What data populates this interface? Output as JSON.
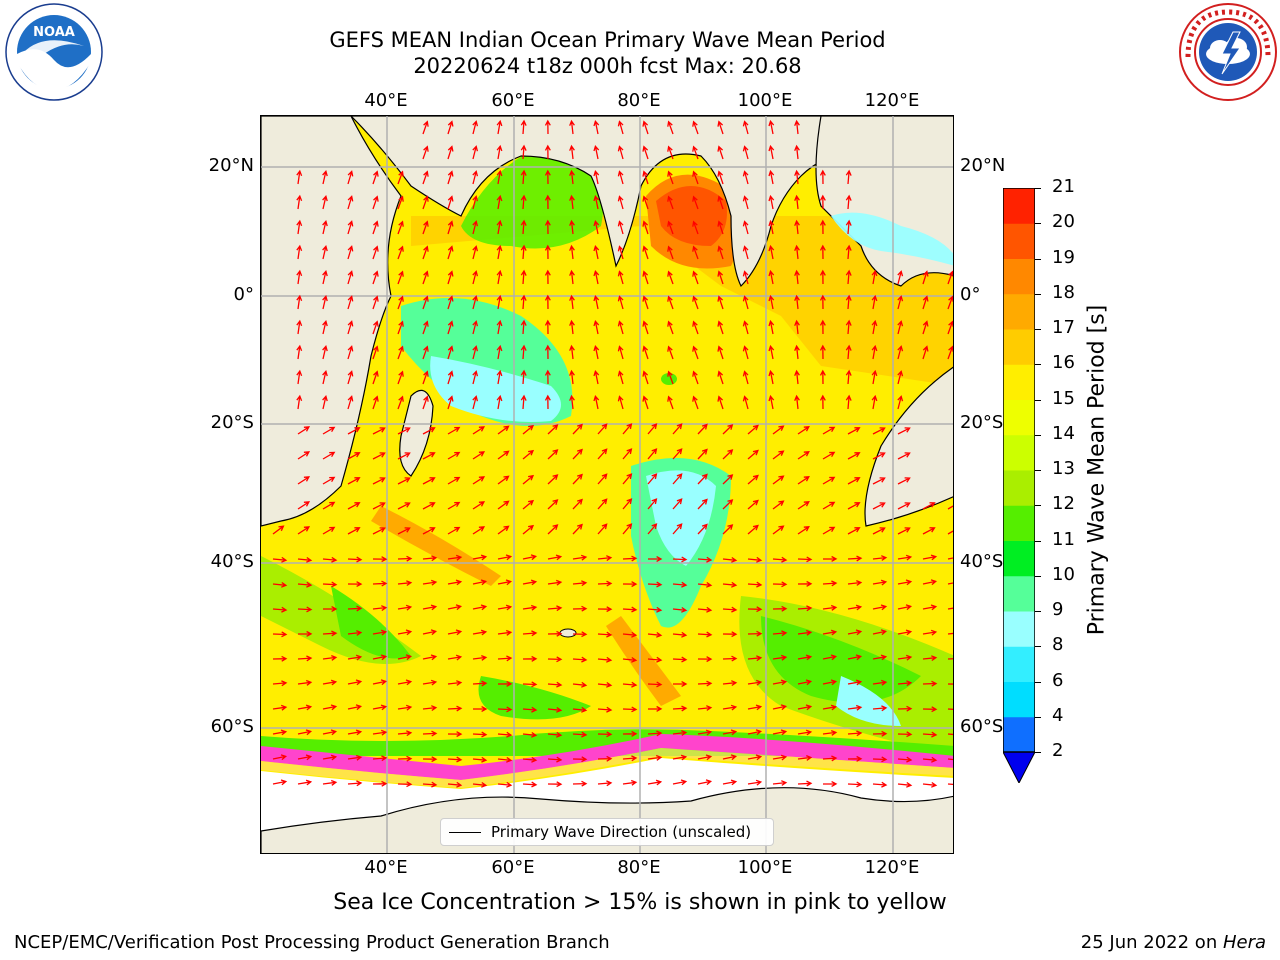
{
  "title_line1": "GEFS MEAN Indian Ocean Primary Wave Mean Period",
  "title_line2": "20220624 t18z 000h fcst   Max: 20.68",
  "logos": {
    "left": {
      "icon": "noaa-logo",
      "text": "NOAA",
      "ring_text": "NATIONAL OCEANIC AND ATMOSPHERIC ADMINISTRATION · U.S. DEPARTMENT OF COMMERCE"
    },
    "right": {
      "icon": "nws-logo",
      "ring_text": "NATIONAL WEATHER SERVICE"
    }
  },
  "map": {
    "lon_labels": [
      "40°E",
      "60°E",
      "80°E",
      "100°E",
      "120°E"
    ],
    "lat_labels": [
      "20°N",
      "0°",
      "20°S",
      "40°S",
      "60°S"
    ],
    "legend_text": "Primary Wave Direction (unscaled)",
    "land_color": "#efecdc",
    "arrow_color": "#ff0000",
    "grid_color": "#b0b0b0"
  },
  "colorbar": {
    "label": "Primary Wave Mean Period [s]",
    "ticks": [
      "2",
      "4",
      "6",
      "8",
      "9",
      "10",
      "11",
      "12",
      "13",
      "14",
      "15",
      "16",
      "17",
      "18",
      "19",
      "20",
      "21"
    ],
    "colors": [
      "#0f6fff",
      "#00ddff",
      "#33eeff",
      "#99ffff",
      "#55ff99",
      "#00ee22",
      "#55ee00",
      "#aaee00",
      "#ccff00",
      "#eeff00",
      "#ffee00",
      "#ffcc00",
      "#ffaa00",
      "#ff8800",
      "#ff5500",
      "#ff2200"
    ],
    "extend_color": "#0000ee"
  },
  "footer": {
    "note": "Sea Ice Concentration > 15% is shown in pink to yellow",
    "credit": "NCEP/EMC/Verification Post Processing Product Generation Branch",
    "date_prefix": "25 Jun 2022 on ",
    "date_machine": "Hera"
  }
}
